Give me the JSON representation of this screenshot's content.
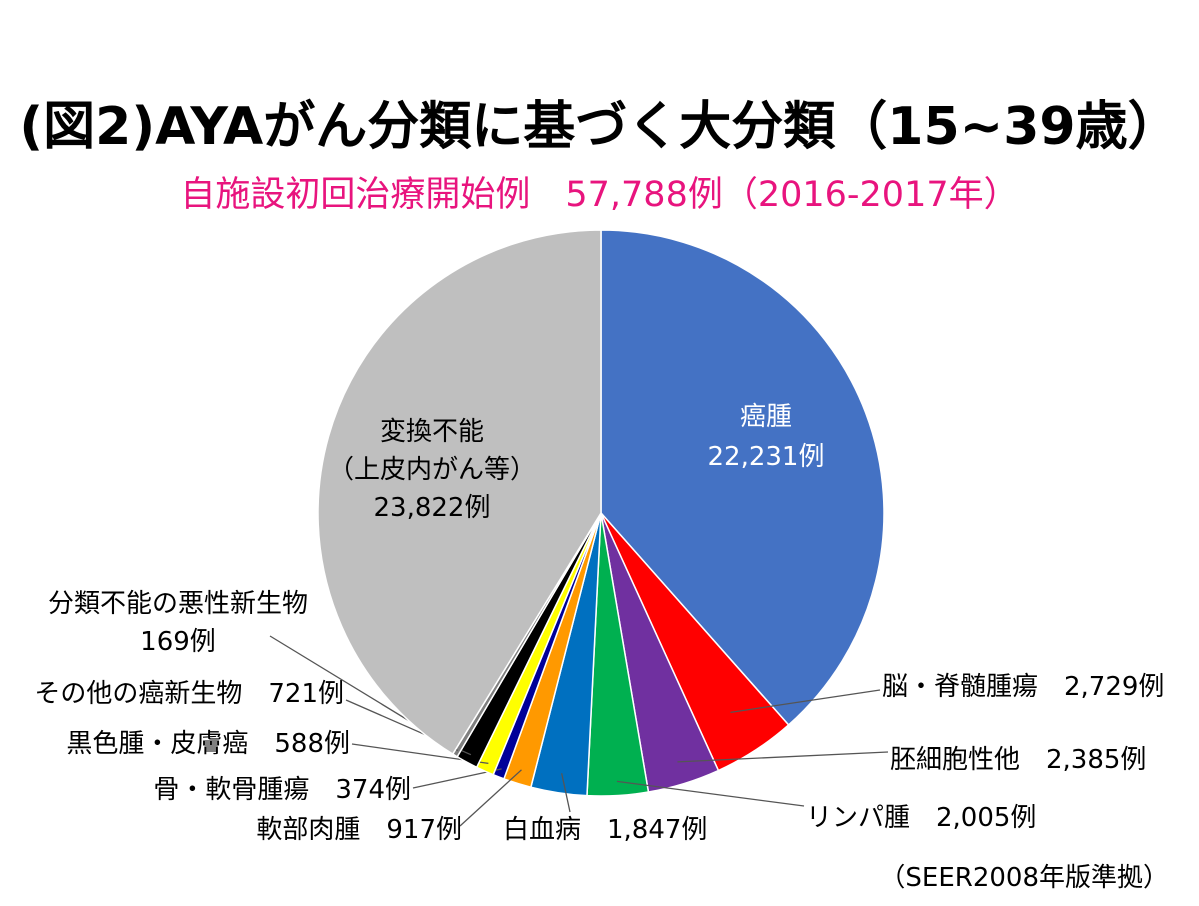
{
  "title": "(図2)AYAがん分類に基づく大分類（15~39歳）",
  "subtitle": "自施設初回治療開始例　57,788例（2016-2017年）",
  "footnote": "（SEER2008年版準拠）",
  "colors": {
    "subtitle": "#e8147e",
    "callout_line": "#555555"
  },
  "chart_data": {
    "type": "pie",
    "start": "12 o'clock, clockwise",
    "slices": [
      {
        "name": "癌腫",
        "value": 22231,
        "label_lines": [
          "癌腫",
          "22,231例"
        ],
        "color": "#4472c4",
        "label_color": "#ffffff"
      },
      {
        "name": "脳・脊髄腫瘍",
        "value": 2729,
        "label_lines": [
          "脳・脊髄腫瘍　2,729例"
        ],
        "color": "#ff0000",
        "label_color": "#000000"
      },
      {
        "name": "胚細胞性他",
        "value": 2385,
        "label_lines": [
          "胚細胞性他　2,385例"
        ],
        "color": "#7030a0",
        "label_color": "#000000"
      },
      {
        "name": "リンパ腫",
        "value": 2005,
        "label_lines": [
          "リンパ腫　2,005例"
        ],
        "color": "#00b050",
        "label_color": "#000000"
      },
      {
        "name": "白血病",
        "value": 1847,
        "label_lines": [
          "白血病　1,847例"
        ],
        "color": "#0070c0",
        "label_color": "#000000"
      },
      {
        "name": "軟部肉腫",
        "value": 917,
        "label_lines": [
          "軟部肉腫　917例"
        ],
        "color": "#ff9900",
        "label_color": "#000000"
      },
      {
        "name": "骨・軟骨腫瘍",
        "value": 374,
        "label_lines": [
          "骨・軟骨腫瘍　374例"
        ],
        "color": "#000099",
        "label_color": "#000000"
      },
      {
        "name": "黒色腫・皮膚癌",
        "value": 588,
        "label_lines": [
          "黒色腫・皮膚癌　588例"
        ],
        "color": "#ffff00",
        "label_color": "#000000"
      },
      {
        "name": "その他の癌新生物",
        "value": 721,
        "label_lines": [
          "その他の癌新生物　721例"
        ],
        "color": "#000000",
        "label_color": "#000000"
      },
      {
        "name": "分類不能の悪性新生物",
        "value": 169,
        "label_lines": [
          "分類不能の悪性新生物",
          "169例"
        ],
        "color": "#7f7f7f",
        "label_color": "#000000"
      },
      {
        "name": "変換不能（上皮内がん等）",
        "value": 23822,
        "label_lines": [
          "変換不能",
          "（上皮内がん等）",
          "23,822例"
        ],
        "color": "#bfbfbf",
        "label_color": "#000000"
      }
    ]
  }
}
